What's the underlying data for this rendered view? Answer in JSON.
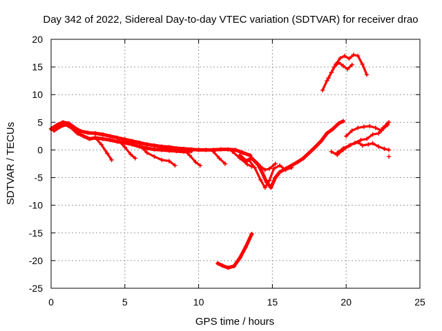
{
  "chart_data": {
    "type": "scatter",
    "title": "Day 342 of 2022, Sidereal Day-to-day VTEC variation (SDTVAR) for receiver drao",
    "xlabel": "GPS time / hours",
    "ylabel": "SDTVAR / TECUs",
    "xlim": [
      0,
      25
    ],
    "ylim": [
      -25,
      20
    ],
    "xticks": [
      0,
      5,
      10,
      15,
      20,
      25
    ],
    "yticks": [
      20,
      15,
      10,
      5,
      0,
      -5,
      -10,
      -15,
      -20,
      -25
    ],
    "grid": true,
    "marker": "+",
    "color": "#ff0000",
    "series": [
      {
        "name": "main-band",
        "thick": true,
        "points": [
          [
            0,
            3.8
          ],
          [
            0.4,
            4.5
          ],
          [
            0.8,
            5.0
          ],
          [
            1.2,
            4.8
          ],
          [
            1.6,
            4.0
          ],
          [
            2.0,
            3.4
          ],
          [
            2.5,
            3.1
          ],
          [
            3.0,
            3.0
          ],
          [
            3.5,
            2.8
          ],
          [
            4.0,
            2.5
          ],
          [
            4.5,
            2.2
          ],
          [
            5.0,
            1.9
          ],
          [
            5.5,
            1.6
          ],
          [
            6.0,
            1.3
          ],
          [
            6.5,
            1.0
          ],
          [
            7.0,
            0.8
          ],
          [
            7.5,
            0.6
          ],
          [
            8.0,
            0.5
          ],
          [
            8.5,
            0.3
          ],
          [
            9.0,
            0.2
          ],
          [
            9.5,
            0.1
          ],
          [
            10.0,
            0.0
          ],
          [
            10.5,
            0.0
          ],
          [
            11.0,
            0.0
          ],
          [
            11.5,
            0.1
          ],
          [
            12.0,
            0.1
          ],
          [
            12.5,
            0.0
          ],
          [
            13.0,
            -0.5
          ],
          [
            13.5,
            -1.0
          ]
        ]
      },
      {
        "name": "band-lower",
        "thick": true,
        "points": [
          [
            0.2,
            3.5
          ],
          [
            0.6,
            4.2
          ],
          [
            1.0,
            4.6
          ],
          [
            1.4,
            4.0
          ],
          [
            1.8,
            3.0
          ],
          [
            2.2,
            2.5
          ],
          [
            2.6,
            2.0
          ],
          [
            3.0,
            2.2
          ],
          [
            3.5,
            2.0
          ],
          [
            4.0,
            1.8
          ],
          [
            4.5,
            1.5
          ],
          [
            5.0,
            1.3
          ],
          [
            5.5,
            1.0
          ],
          [
            6.0,
            0.6
          ],
          [
            6.5,
            0.3
          ],
          [
            7.0,
            0.1
          ],
          [
            7.5,
            0.0
          ],
          [
            8.0,
            -0.1
          ],
          [
            8.5,
            -0.2
          ],
          [
            9.0,
            -0.3
          ],
          [
            9.5,
            -0.2
          ]
        ]
      },
      {
        "name": "dip-1",
        "points": [
          [
            3.0,
            2.2
          ],
          [
            3.4,
            1.0
          ],
          [
            3.8,
            -0.6
          ],
          [
            4.1,
            -1.8
          ]
        ]
      },
      {
        "name": "dip-2",
        "points": [
          [
            4.6,
            1.6
          ],
          [
            5.0,
            0.5
          ],
          [
            5.4,
            -0.8
          ],
          [
            5.7,
            -1.5
          ]
        ]
      },
      {
        "name": "dip-3",
        "points": [
          [
            6.0,
            0.8
          ],
          [
            6.5,
            -0.5
          ],
          [
            7.0,
            -1.2
          ],
          [
            7.5,
            -1.8
          ],
          [
            8.0,
            -2.0
          ],
          [
            8.4,
            -2.8
          ]
        ]
      },
      {
        "name": "dip-4",
        "points": [
          [
            9.0,
            0.0
          ],
          [
            9.4,
            -1.0
          ],
          [
            9.8,
            -2.2
          ],
          [
            10.1,
            -2.8
          ]
        ]
      },
      {
        "name": "dip-5",
        "points": [
          [
            11.0,
            -0.3
          ],
          [
            11.4,
            -1.5
          ],
          [
            11.8,
            -2.5
          ]
        ]
      },
      {
        "name": "dip-6",
        "points": [
          [
            12.3,
            -0.3
          ],
          [
            12.8,
            -1.5
          ],
          [
            13.3,
            -2.6
          ],
          [
            13.6,
            -3.0
          ]
        ]
      },
      {
        "name": "trough",
        "thick": true,
        "points": [
          [
            12.8,
            -1.0
          ],
          [
            13.2,
            -2.0
          ],
          [
            13.6,
            -1.5
          ],
          [
            14.0,
            -2.5
          ],
          [
            14.3,
            -4.0
          ],
          [
            14.6,
            -5.8
          ],
          [
            14.9,
            -6.8
          ],
          [
            15.2,
            -5.0
          ],
          [
            15.5,
            -4.0
          ],
          [
            15.9,
            -3.4
          ],
          [
            16.3,
            -2.8
          ],
          [
            16.7,
            -2.2
          ],
          [
            17.1,
            -1.5
          ],
          [
            17.5,
            -0.5
          ],
          [
            17.9,
            0.5
          ],
          [
            18.3,
            1.6
          ],
          [
            18.7,
            3.0
          ],
          [
            19.1,
            3.8
          ],
          [
            19.5,
            4.8
          ],
          [
            19.8,
            5.2
          ]
        ]
      },
      {
        "name": "trough-2",
        "points": [
          [
            13.4,
            -1.8
          ],
          [
            13.8,
            -3.2
          ],
          [
            14.2,
            -5.4
          ],
          [
            14.5,
            -6.8
          ],
          [
            14.8,
            -5.5
          ],
          [
            15.1,
            -3.4
          ],
          [
            15.5,
            -2.8
          ],
          [
            15.9,
            -3.6
          ],
          [
            16.3,
            -3.2
          ]
        ]
      },
      {
        "name": "trough-3",
        "points": [
          [
            13.9,
            -2.4
          ],
          [
            14.2,
            -3.0
          ],
          [
            14.5,
            -3.6
          ],
          [
            14.8,
            -3.4
          ],
          [
            15.2,
            -2.5
          ]
        ]
      },
      {
        "name": "evening-1",
        "points": [
          [
            19.4,
            -0.5
          ],
          [
            19.8,
            0.3
          ],
          [
            20.2,
            0.8
          ],
          [
            20.6,
            1.3
          ],
          [
            21.0,
            1.8
          ],
          [
            21.4,
            2.0
          ],
          [
            21.8,
            2.8
          ],
          [
            22.2,
            3.0
          ],
          [
            22.5,
            4.0
          ],
          [
            22.8,
            4.8
          ]
        ]
      },
      {
        "name": "evening-2",
        "points": [
          [
            20.0,
            2.5
          ],
          [
            20.4,
            3.5
          ],
          [
            20.8,
            4.0
          ],
          [
            21.2,
            4.2
          ],
          [
            21.6,
            4.3
          ],
          [
            22.0,
            4.0
          ],
          [
            22.4,
            3.5
          ],
          [
            22.8,
            4.5
          ],
          [
            22.9,
            5.0
          ]
        ]
      },
      {
        "name": "evening-3",
        "points": [
          [
            19.0,
            -0.3
          ],
          [
            19.4,
            -0.9
          ],
          [
            19.8,
            0.0
          ],
          [
            20.3,
            0.9
          ],
          [
            20.8,
            1.4
          ],
          [
            21.1,
            0.8
          ],
          [
            21.5,
            1.0
          ],
          [
            21.8,
            1.2
          ],
          [
            22.2,
            0.6
          ],
          [
            22.6,
            0.2
          ],
          [
            22.9,
            0.0
          ]
        ]
      },
      {
        "name": "upper-arc-1",
        "points": [
          [
            18.4,
            10.8
          ],
          [
            18.7,
            12.5
          ],
          [
            19.0,
            14.0
          ],
          [
            19.3,
            15.5
          ],
          [
            19.6,
            16.6
          ],
          [
            19.9,
            17.0
          ],
          [
            20.2,
            16.5
          ],
          [
            20.5,
            17.2
          ],
          [
            20.8,
            17.0
          ],
          [
            21.1,
            15.5
          ],
          [
            21.4,
            13.6
          ]
        ]
      },
      {
        "name": "upper-arc-2",
        "points": [
          [
            18.8,
            13.0
          ],
          [
            19.2,
            15.0
          ],
          [
            19.5,
            15.8
          ],
          [
            19.8,
            15.2
          ],
          [
            20.1,
            14.6
          ],
          [
            20.4,
            15.4
          ]
        ]
      },
      {
        "name": "negative-arc",
        "thick": true,
        "points": [
          [
            11.3,
            -20.5
          ],
          [
            11.6,
            -20.9
          ],
          [
            12.0,
            -21.3
          ],
          [
            12.4,
            -21.0
          ],
          [
            12.8,
            -19.5
          ],
          [
            13.2,
            -17.5
          ],
          [
            13.6,
            -15.2
          ]
        ]
      },
      {
        "name": "outlier",
        "points": [
          [
            22.9,
            -1.2
          ]
        ]
      }
    ]
  }
}
